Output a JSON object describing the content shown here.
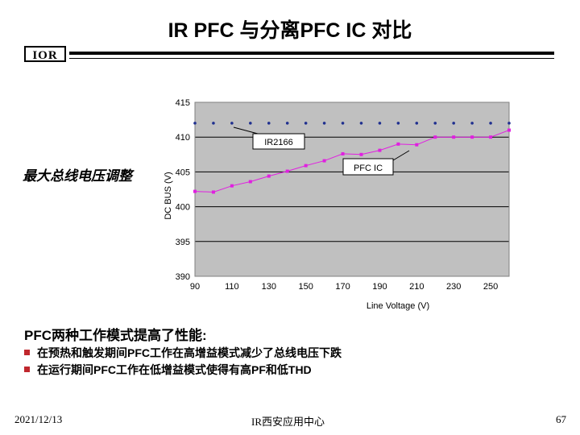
{
  "title": "IR PFC 与分离PFC IC 对比",
  "logo_text": "IOR",
  "side_label": "最大总线电压调整",
  "heading": "PFC两种工作模式提高了性能:",
  "bullets": [
    "在预热和触发期间PFC工作在高增益模式减少了总线电压下跌",
    "在运行期间PFC工作在低增益模式使得有高PF和低THD"
  ],
  "footer": {
    "date": "2021/12/13",
    "center": "IR西安应用中心",
    "page": "67"
  },
  "colors": {
    "bullet": "#c0272d",
    "plot_bg": "#c0c0c0",
    "series_ir": "#1f2f8f",
    "series_pfc": "#e020e0"
  },
  "chart_data": {
    "type": "line",
    "xlabel": "Line Voltage (V)",
    "ylabel": "DC BUS (V)",
    "xlim": [
      90,
      260
    ],
    "ylim": [
      390,
      415
    ],
    "x_ticks": [
      90,
      110,
      130,
      150,
      170,
      190,
      210,
      230,
      250
    ],
    "y_ticks": [
      390,
      395,
      400,
      405,
      410,
      415
    ],
    "grid": true,
    "series": [
      {
        "name": "IR2166",
        "marker": "dot",
        "x": [
          90,
          100,
          110,
          120,
          130,
          140,
          150,
          160,
          170,
          180,
          190,
          200,
          210,
          220,
          230,
          240,
          250,
          260
        ],
        "y": [
          412,
          412,
          412,
          412,
          412,
          412,
          412,
          412,
          412,
          412,
          412,
          412,
          412,
          412,
          412,
          412,
          412,
          412
        ]
      },
      {
        "name": "PFC IC",
        "marker": "square",
        "x": [
          90,
          100,
          110,
          120,
          130,
          140,
          150,
          160,
          170,
          180,
          190,
          200,
          210,
          220,
          230,
          240,
          250,
          260
        ],
        "y": [
          402.2,
          402.1,
          403,
          403.6,
          404.4,
          405.1,
          405.9,
          406.6,
          407.6,
          407.5,
          408.1,
          409,
          408.9,
          410,
          410,
          410,
          410,
          411
        ]
      }
    ],
    "annotations": [
      "IR2166",
      "PFC IC"
    ]
  }
}
